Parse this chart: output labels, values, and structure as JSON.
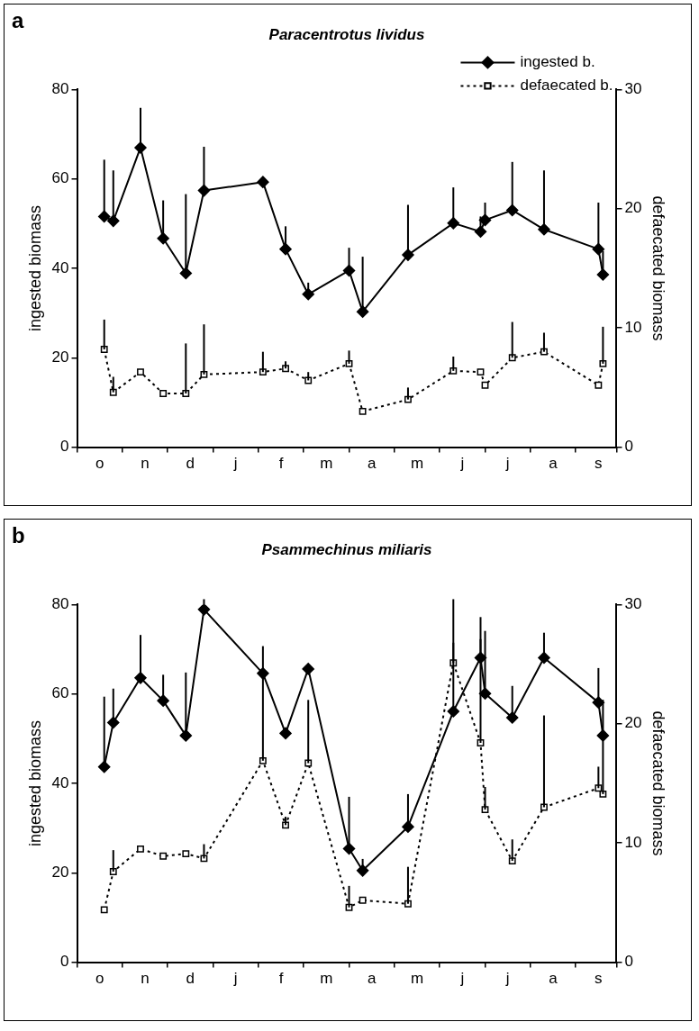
{
  "chart_data": [
    {
      "type": "line",
      "title": "Paracentrotus lividus",
      "ylabel": "ingested biomass",
      "y2label": "defaecated biomass",
      "annotations": [
        "a"
      ],
      "categories": [
        null,
        null,
        null,
        null,
        null,
        "o",
        null,
        null,
        null,
        null,
        null,
        null,
        null,
        null,
        null,
        "n",
        null,
        null,
        null,
        null,
        null,
        null,
        null,
        null,
        null,
        "d",
        null,
        null,
        null,
        null,
        null,
        null,
        null,
        null,
        null,
        "j",
        null,
        null,
        null,
        null,
        null,
        null,
        null,
        null,
        null,
        "f",
        null,
        null,
        null,
        null,
        null,
        null,
        null,
        null,
        null,
        "m",
        null,
        null,
        null,
        null,
        null,
        null,
        null,
        null,
        null,
        "a",
        null,
        null,
        null,
        null,
        null,
        null,
        null,
        null,
        null,
        "m",
        null,
        null,
        null,
        null,
        null,
        null,
        null,
        null,
        null,
        "j",
        null,
        null,
        null,
        null,
        null,
        null,
        null,
        null,
        null,
        "j",
        null,
        null,
        null,
        null,
        null,
        null,
        null,
        null,
        null,
        "a",
        null,
        null,
        null,
        null,
        null,
        null,
        null,
        null,
        null,
        "s",
        null,
        null,
        null,
        null
      ],
      "ylim": [
        0,
        80
      ],
      "yticks": [
        0,
        20,
        40,
        60,
        80
      ],
      "y2lim": [
        0,
        30
      ],
      "y2ticks": [
        0,
        10,
        20,
        30
      ],
      "legend": "top right",
      "series": [
        {
          "name": "ingested b.",
          "color": "#000000",
          "marker": "diamond",
          "line_style": "solid",
          "values": [
            null,
            null,
            null,
            null,
            null,
            null,
            51.6,
            null,
            50.6,
            null,
            null,
            null,
            null,
            null,
            67,
            null,
            null,
            null,
            null,
            46.7,
            null,
            null,
            null,
            null,
            38.9,
            null,
            null,
            null,
            57.4,
            null,
            null,
            null,
            null,
            null,
            null,
            null,
            null,
            null,
            null,
            null,
            null,
            59.3,
            null,
            null,
            null,
            null,
            44.3,
            null,
            null,
            null,
            null,
            34.2,
            null,
            null,
            null,
            null,
            null,
            null,
            null,
            null,
            39.5,
            null,
            null,
            30.3,
            null,
            null,
            null,
            null,
            null,
            null,
            null,
            null,
            null,
            43,
            null,
            null,
            null,
            null,
            null,
            null,
            null,
            null,
            null,
            50.1,
            null,
            null,
            null,
            null,
            null,
            48.2,
            50.8,
            null,
            null,
            null,
            null,
            null,
            53,
            null,
            null,
            null,
            null,
            null,
            null,
            48.7,
            null,
            null,
            null,
            null,
            null,
            null,
            null,
            null,
            null,
            null,
            null,
            44.3,
            38.6,
            null,
            null,
            null
          ],
          "errors": [
            null,
            null,
            null,
            null,
            null,
            null,
            [
              51.6,
              64.3
            ],
            null,
            [
              50.6,
              61.9
            ],
            null,
            null,
            null,
            null,
            null,
            [
              67,
              75.9
            ],
            null,
            null,
            null,
            null,
            [
              46.7,
              55.2
            ],
            null,
            null,
            null,
            null,
            [
              38.9,
              56.6
            ],
            null,
            null,
            null,
            [
              57.4,
              67.2
            ],
            null,
            null,
            null,
            null,
            null,
            null,
            null,
            null,
            null,
            null,
            null,
            null,
            null,
            null,
            null,
            null,
            null,
            [
              44.3,
              49.4
            ],
            null,
            null,
            null,
            null,
            [
              34.2,
              36.8
            ],
            null,
            null,
            null,
            null,
            null,
            null,
            null,
            null,
            [
              39.5,
              44.6
            ],
            null,
            null,
            [
              30.3,
              42.6
            ],
            null,
            null,
            null,
            null,
            null,
            null,
            null,
            null,
            null,
            [
              43,
              54.2
            ],
            null,
            null,
            null,
            null,
            null,
            null,
            null,
            null,
            null,
            [
              50.1,
              58.1
            ],
            null,
            null,
            null,
            null,
            null,
            [
              48.2,
              51.6
            ],
            [
              50.8,
              54.7
            ],
            null,
            null,
            null,
            null,
            null,
            [
              53,
              63.8
            ],
            null,
            null,
            null,
            null,
            null,
            null,
            [
              48.7,
              61.9
            ],
            null,
            null,
            null,
            null,
            null,
            null,
            null,
            null,
            null,
            null,
            null,
            [
              44.3,
              54.7
            ],
            [
              38.6,
              43.9
            ],
            null,
            null,
            null
          ]
        },
        {
          "name": "defaecated b.",
          "color": "#000000",
          "marker": "square",
          "line_style": "dotted",
          "axis": "y2",
          "values": [
            null,
            null,
            null,
            null,
            null,
            null,
            8.2,
            null,
            4.6,
            null,
            null,
            null,
            null,
            null,
            6.3,
            null,
            null,
            null,
            null,
            4.5,
            null,
            null,
            null,
            null,
            4.5,
            null,
            null,
            null,
            6.1,
            null,
            null,
            null,
            null,
            null,
            null,
            null,
            null,
            null,
            null,
            null,
            null,
            6.3,
            null,
            null,
            null,
            null,
            6.6,
            null,
            null,
            null,
            null,
            5.6,
            null,
            null,
            null,
            null,
            null,
            null,
            null,
            null,
            7,
            null,
            null,
            3,
            null,
            null,
            null,
            null,
            null,
            null,
            null,
            null,
            null,
            4,
            null,
            null,
            null,
            null,
            null,
            null,
            null,
            null,
            null,
            6.4,
            null,
            null,
            null,
            null,
            null,
            6.3,
            5.2,
            null,
            null,
            null,
            null,
            null,
            7.5,
            null,
            null,
            null,
            null,
            null,
            null,
            8,
            null,
            null,
            null,
            null,
            null,
            null,
            null,
            null,
            null,
            null,
            null,
            5.2,
            7,
            null,
            null,
            null
          ],
          "errors": [
            null,
            null,
            null,
            null,
            null,
            null,
            [
              8.2,
              10.7
            ],
            null,
            [
              4.6,
              5.9
            ],
            null,
            null,
            null,
            null,
            null,
            null,
            null,
            null,
            null,
            null,
            null,
            null,
            null,
            null,
            null,
            [
              4.5,
              8.7
            ],
            null,
            null,
            null,
            [
              6.1,
              10.3
            ],
            null,
            null,
            null,
            null,
            null,
            null,
            null,
            null,
            null,
            null,
            null,
            null,
            [
              6.3,
              8
            ],
            null,
            null,
            null,
            null,
            [
              6.6,
              7.2
            ],
            null,
            null,
            null,
            null,
            [
              5.6,
              6.3
            ],
            null,
            null,
            null,
            null,
            null,
            null,
            null,
            null,
            [
              7,
              8.1
            ],
            null,
            null,
            null,
            null,
            null,
            null,
            null,
            null,
            null,
            null,
            null,
            null,
            [
              4,
              5
            ],
            null,
            null,
            null,
            null,
            null,
            null,
            null,
            null,
            null,
            [
              6.4,
              7.6
            ],
            null,
            null,
            null,
            null,
            null,
            null,
            null,
            null,
            null,
            null,
            null,
            null,
            [
              7.5,
              10.5
            ],
            null,
            null,
            null,
            null,
            null,
            null,
            [
              8,
              9.6
            ],
            null,
            null,
            null,
            null,
            null,
            null,
            null,
            null,
            null,
            null,
            null,
            null,
            [
              7,
              10.1
            ],
            null,
            null,
            null
          ]
        }
      ]
    },
    {
      "type": "line",
      "title": "Psammechinus miliaris",
      "ylabel": "ingested biomass",
      "y2label": "defaecated biomass",
      "annotations": [
        "b"
      ],
      "categories": [
        null,
        null,
        null,
        null,
        null,
        "o",
        null,
        null,
        null,
        null,
        null,
        null,
        null,
        null,
        null,
        "n",
        null,
        null,
        null,
        null,
        null,
        null,
        null,
        null,
        null,
        "d",
        null,
        null,
        null,
        null,
        null,
        null,
        null,
        null,
        null,
        "j",
        null,
        null,
        null,
        null,
        null,
        null,
        null,
        null,
        null,
        "f",
        null,
        null,
        null,
        null,
        null,
        null,
        null,
        null,
        null,
        "m",
        null,
        null,
        null,
        null,
        null,
        null,
        null,
        null,
        null,
        "a",
        null,
        null,
        null,
        null,
        null,
        null,
        null,
        null,
        null,
        "m",
        null,
        null,
        null,
        null,
        null,
        null,
        null,
        null,
        null,
        "j",
        null,
        null,
        null,
        null,
        null,
        null,
        null,
        null,
        null,
        "j",
        null,
        null,
        null,
        null,
        null,
        null,
        null,
        null,
        null,
        "a",
        null,
        null,
        null,
        null,
        null,
        null,
        null,
        null,
        null,
        "s",
        null,
        null,
        null,
        null
      ],
      "ylim": [
        0,
        80
      ],
      "yticks": [
        0,
        20,
        40,
        60,
        80
      ],
      "y2lim": [
        0,
        30
      ],
      "y2ticks": [
        0,
        10,
        20,
        30
      ],
      "series": [
        {
          "color": "#000000",
          "marker": "diamond",
          "line_style": "solid",
          "values": [
            null,
            null,
            null,
            null,
            null,
            null,
            43.7,
            null,
            53.6,
            null,
            null,
            null,
            null,
            null,
            63.6,
            null,
            null,
            null,
            null,
            58.5,
            null,
            null,
            null,
            null,
            50.7,
            null,
            null,
            null,
            78.9,
            null,
            null,
            null,
            null,
            null,
            null,
            null,
            null,
            null,
            null,
            null,
            null,
            64.6,
            null,
            null,
            null,
            null,
            51.2,
            null,
            null,
            null,
            null,
            65.6,
            null,
            null,
            null,
            null,
            null,
            null,
            null,
            null,
            25.4,
            null,
            null,
            20.5,
            null,
            null,
            null,
            null,
            null,
            null,
            null,
            null,
            null,
            30.3,
            null,
            null,
            null,
            null,
            null,
            null,
            null,
            null,
            null,
            56.1,
            null,
            null,
            null,
            null,
            null,
            68.1,
            60.1,
            null,
            null,
            null,
            null,
            null,
            54.7,
            null,
            null,
            null,
            null,
            null,
            null,
            68.1,
            null,
            null,
            null,
            null,
            null,
            null,
            null,
            null,
            null,
            null,
            null,
            58.1,
            50.7,
            null,
            null,
            null
          ],
          "errors": [
            null,
            null,
            null,
            null,
            null,
            null,
            [
              43.7,
              59.4
            ],
            null,
            [
              53.6,
              61.2
            ],
            null,
            null,
            null,
            null,
            null,
            [
              63.6,
              73.2
            ],
            null,
            null,
            null,
            null,
            [
              58.5,
              64.3
            ],
            null,
            null,
            null,
            null,
            [
              50.7,
              64.8
            ],
            null,
            null,
            null,
            [
              78.9,
              81.2
            ],
            null,
            null,
            null,
            null,
            null,
            null,
            null,
            null,
            null,
            null,
            null,
            null,
            [
              64.6,
              70.7
            ],
            null,
            null,
            null,
            null,
            null,
            null,
            null,
            null,
            null,
            null,
            null,
            null,
            null,
            null,
            null,
            null,
            null,
            null,
            [
              25.4,
              37
            ],
            null,
            null,
            [
              20.5,
              23.1
            ],
            null,
            null,
            null,
            null,
            null,
            null,
            null,
            null,
            null,
            [
              30.3,
              37.6
            ],
            null,
            null,
            null,
            null,
            null,
            null,
            null,
            null,
            null,
            [
              56.1,
              81.2
            ],
            null,
            null,
            null,
            null,
            null,
            [
              68.1,
              77.2
            ],
            [
              60.1,
              74.1
            ],
            null,
            null,
            null,
            null,
            null,
            [
              54.7,
              61.8
            ],
            null,
            null,
            null,
            null,
            null,
            null,
            [
              68.1,
              73.7
            ],
            null,
            null,
            null,
            null,
            null,
            null,
            null,
            null,
            null,
            null,
            null,
            [
              58.1,
              65.8
            ],
            [
              50.7,
              58.7
            ],
            null,
            null,
            null
          ]
        },
        {
          "color": "#000000",
          "marker": "square",
          "line_style": "dotted",
          "axis": "y2",
          "values": [
            null,
            null,
            null,
            null,
            null,
            null,
            4.4,
            null,
            7.6,
            null,
            null,
            null,
            null,
            null,
            9.5,
            null,
            null,
            null,
            null,
            8.9,
            null,
            null,
            null,
            null,
            9.1,
            null,
            null,
            null,
            8.7,
            null,
            null,
            null,
            null,
            null,
            null,
            null,
            null,
            null,
            null,
            null,
            null,
            16.9,
            null,
            null,
            null,
            null,
            11.5,
            null,
            null,
            null,
            null,
            16.7,
            null,
            null,
            null,
            null,
            null,
            null,
            null,
            null,
            4.6,
            null,
            null,
            5.2,
            null,
            null,
            null,
            null,
            null,
            null,
            null,
            null,
            null,
            4.9,
            null,
            null,
            null,
            null,
            null,
            null,
            null,
            null,
            null,
            25.1,
            null,
            null,
            null,
            null,
            null,
            18.4,
            12.8,
            null,
            null,
            null,
            null,
            null,
            8.5,
            null,
            null,
            null,
            null,
            null,
            null,
            13,
            null,
            null,
            null,
            null,
            null,
            null,
            null,
            null,
            null,
            null,
            null,
            14.6,
            14.1,
            null,
            null,
            null
          ],
          "errors": [
            null,
            null,
            null,
            null,
            null,
            null,
            null,
            null,
            [
              7.6,
              9.4
            ],
            null,
            null,
            null,
            null,
            null,
            null,
            null,
            null,
            null,
            null,
            null,
            null,
            null,
            null,
            null,
            null,
            null,
            null,
            null,
            [
              8.7,
              9.9
            ],
            null,
            null,
            null,
            null,
            null,
            null,
            null,
            null,
            null,
            null,
            null,
            null,
            [
              16.9,
              24.2
            ],
            null,
            null,
            null,
            null,
            [
              11.5,
              12.2
            ],
            null,
            null,
            null,
            null,
            [
              16.7,
              22
            ],
            null,
            null,
            null,
            null,
            null,
            null,
            null,
            null,
            [
              4.6,
              6.4
            ],
            null,
            null,
            null,
            null,
            null,
            null,
            null,
            null,
            null,
            null,
            null,
            null,
            [
              4.9,
              8
            ],
            null,
            null,
            null,
            null,
            null,
            null,
            null,
            null,
            null,
            [
              25.1,
              26.8
            ],
            null,
            null,
            null,
            null,
            null,
            [
              18.4,
              27.1
            ],
            [
              12.8,
              14.7
            ],
            null,
            null,
            null,
            null,
            null,
            [
              8.5,
              10.3
            ],
            null,
            null,
            null,
            null,
            null,
            null,
            [
              13,
              20.7
            ],
            null,
            null,
            null,
            null,
            null,
            null,
            null,
            null,
            null,
            null,
            null,
            [
              14.6,
              16.4
            ],
            [
              14.1,
              19
            ],
            null,
            null,
            null
          ]
        }
      ]
    }
  ]
}
